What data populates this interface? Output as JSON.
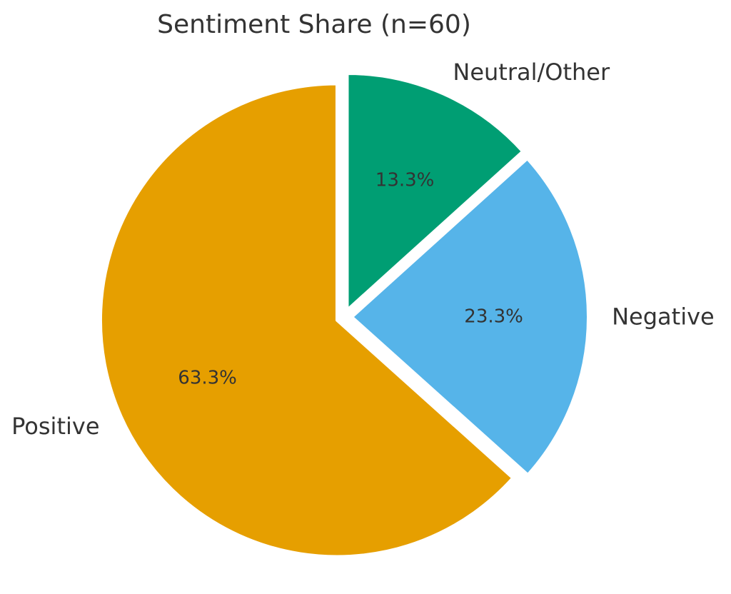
{
  "title": "Sentiment Share (n=60)",
  "text_color": "#333333",
  "background_color": "#ffffff",
  "chart_data": {
    "type": "pie",
    "title": "Sentiment Share (n=60)",
    "sample_size": 60,
    "slices": [
      {
        "label": "Positive",
        "pct": 63.3,
        "pct_label": "63.3%",
        "color": "#E69F00"
      },
      {
        "label": "Negative",
        "pct": 23.3,
        "pct_label": "23.3%",
        "color": "#56B4E9"
      },
      {
        "label": "Neutral/Other",
        "pct": 13.3,
        "pct_label": "13.3%",
        "color": "#009E73"
      }
    ],
    "start_angle_deg": 90,
    "direction": "counterclockwise",
    "edge_color": "#ffffff",
    "explode_all_slices": true,
    "legend": "none (direct slice labels)",
    "pct_label_distance": 0.6,
    "slice_label_distance": 1.1
  }
}
